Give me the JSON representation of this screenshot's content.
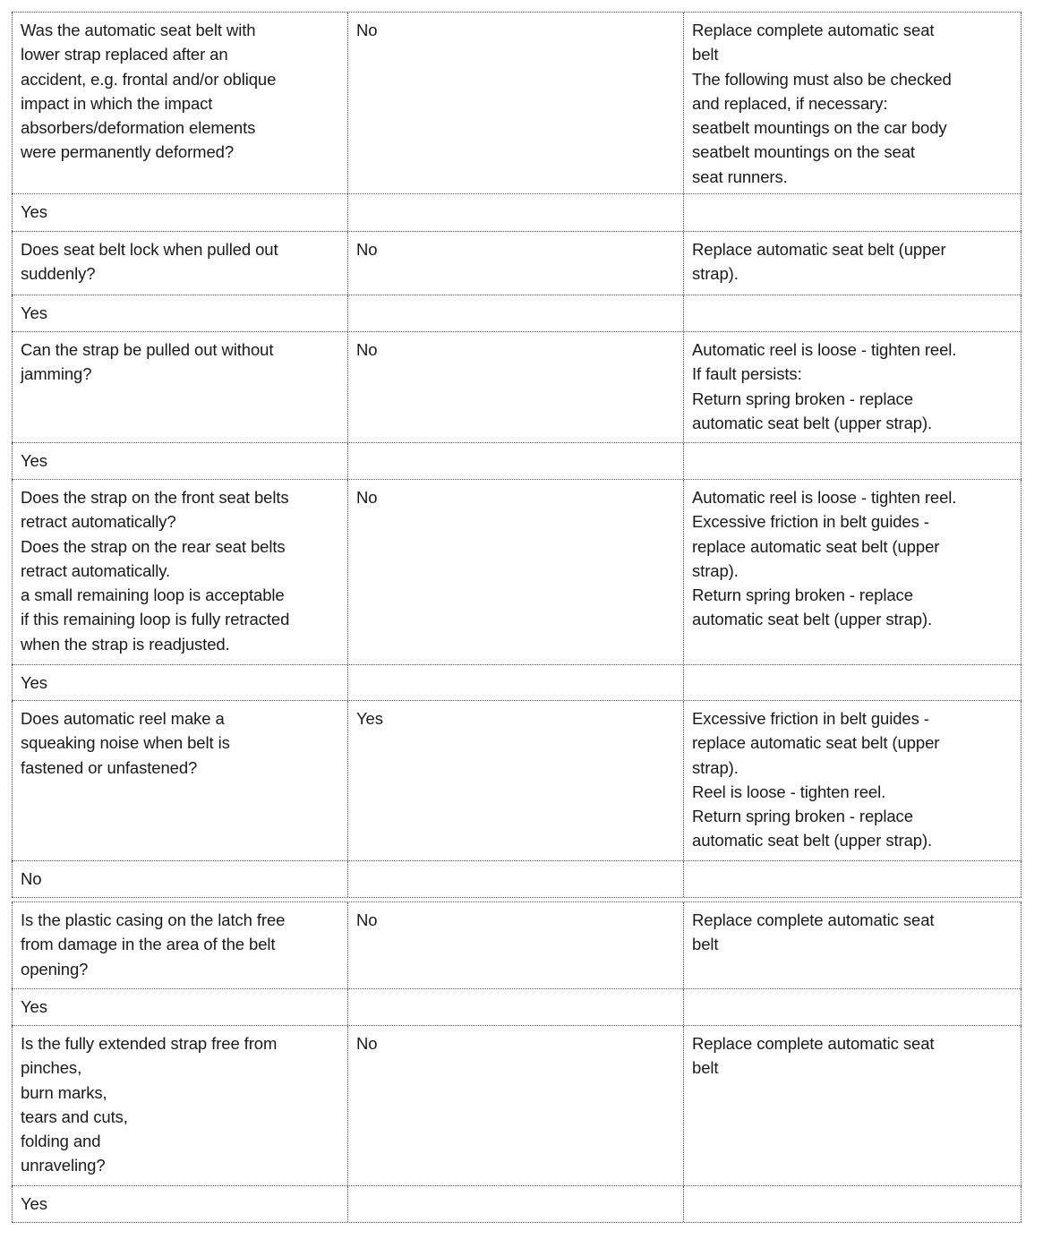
{
  "rows": [
    {
      "question": "Was the automatic seat belt with\nlower strap replaced after an\naccident, e.g. frontal and/or oblique\nimpact in which the impact\nabsorbers/deformation elements\nwere permanently deformed?",
      "answer": "No",
      "action": "Replace complete automatic seat\nbelt\nThe following must also be checked\nand replaced, if necessary:\nseatbelt mountings on the car body\nseatbelt mountings on the seat\nseat runners.",
      "next": "Yes"
    },
    {
      "question": "Does seat belt lock when pulled out\nsuddenly?",
      "answer": "No",
      "action": "Replace automatic seat belt (upper\nstrap).",
      "next": "Yes"
    },
    {
      "question": "Can the strap be pulled out without\njamming?",
      "answer": "No",
      "action": "Automatic reel is loose - tighten reel.\nIf fault persists:\nReturn spring broken - replace\nautomatic seat belt (upper strap).",
      "next": "Yes"
    },
    {
      "question": "Does the strap on the front seat belts\nretract automatically?\nDoes the strap on the rear seat belts\nretract automatically.\na small remaining loop is acceptable\nif this remaining loop is fully retracted\nwhen the strap is readjusted.",
      "answer": "No",
      "action": "Automatic reel is loose - tighten reel.\nExcessive friction in belt guides -\nreplace automatic seat belt (upper\nstrap).\nReturn spring broken - replace\nautomatic seat belt (upper strap).",
      "next": "Yes"
    },
    {
      "question": "Does automatic reel make a\nsqueaking noise when belt is\nfastened or unfastened?",
      "answer": "Yes",
      "action": "Excessive friction in belt guides -\nreplace automatic seat belt (upper\nstrap).\nReel is loose - tighten reel.\nReturn spring broken - replace\nautomatic seat belt (upper strap).",
      "next": "No"
    },
    {
      "question": "Is the plastic casing on the latch free\nfrom damage in the area of the belt\nopening?",
      "answer": "No",
      "action": "Replace complete automatic seat\nbelt",
      "next": "Yes"
    },
    {
      "question": "Is the fully extended strap free from\npinches,\nburn marks,\ntears and cuts,\nfolding and\nunraveling?",
      "answer": "No",
      "action": "Replace complete automatic seat\nbelt",
      "next": "Yes"
    }
  ]
}
